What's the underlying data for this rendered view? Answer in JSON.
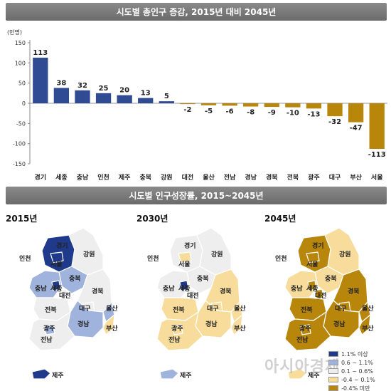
{
  "chart_data": {
    "type": "bar",
    "title": "시도별 총인구 증감, 2015년 대비 2045년",
    "ylabel": "(만명)",
    "ylim": [
      -150,
      150
    ],
    "yticks": [
      150,
      100,
      50,
      0,
      -50,
      -100,
      -150
    ],
    "categories": [
      "경기",
      "세종",
      "충남",
      "인천",
      "제주",
      "충북",
      "강원",
      "대전",
      "울산",
      "전남",
      "경남",
      "경북",
      "전북",
      "광주",
      "대구",
      "부산",
      "서울"
    ],
    "values": [
      113,
      38,
      32,
      25,
      20,
      13,
      5,
      -2,
      -5,
      -6,
      -8,
      -9,
      -10,
      -13,
      -32,
      -47,
      -113
    ],
    "value_labels": [
      "113",
      "38",
      "32",
      "25",
      "20",
      "13",
      "5",
      "-2",
      "-5",
      "-6",
      "-8",
      "-9",
      "-10",
      "-13",
      "-32",
      "-47",
      "-113"
    ],
    "colors": {
      "positive": "#2f4b94",
      "negative": "#b8860b"
    },
    "grid": false
  },
  "maps_section": {
    "title": "시도별 인구성장률, 2015~2045년",
    "panels": [
      {
        "year": "2015년"
      },
      {
        "year": "2030년"
      },
      {
        "year": "2045년"
      }
    ],
    "region_labels": {
      "inchon": "인천",
      "gyeonggi": "경기",
      "seoul": "서울",
      "gangwon": "강원",
      "chungbuk": "충북",
      "chungnam": "충남",
      "sejong": "세종",
      "daejeon": "대전",
      "gyeongbuk": "경북",
      "jeonbuk": "전북",
      "daegu": "대구",
      "ulsan": "울산",
      "gwangju": "광주",
      "gyeongnam": "경남",
      "busan": "부산",
      "jeonnam": "전남",
      "jeju": "제주"
    },
    "legend": [
      {
        "label": "1.1% 이상",
        "color": "#1f3a8a"
      },
      {
        "label": "0.6 ~ 1.1%",
        "color": "#9fb3dd"
      },
      {
        "label": "0.1 ~ 0.6%",
        "color": "#eeeeee"
      },
      {
        "label": "-0.4 ~ 0.1%",
        "color": "#f7dc9b"
      },
      {
        "label": "-0.4% 미만",
        "color": "#b8860b"
      }
    ]
  },
  "watermark": "아시아경제"
}
